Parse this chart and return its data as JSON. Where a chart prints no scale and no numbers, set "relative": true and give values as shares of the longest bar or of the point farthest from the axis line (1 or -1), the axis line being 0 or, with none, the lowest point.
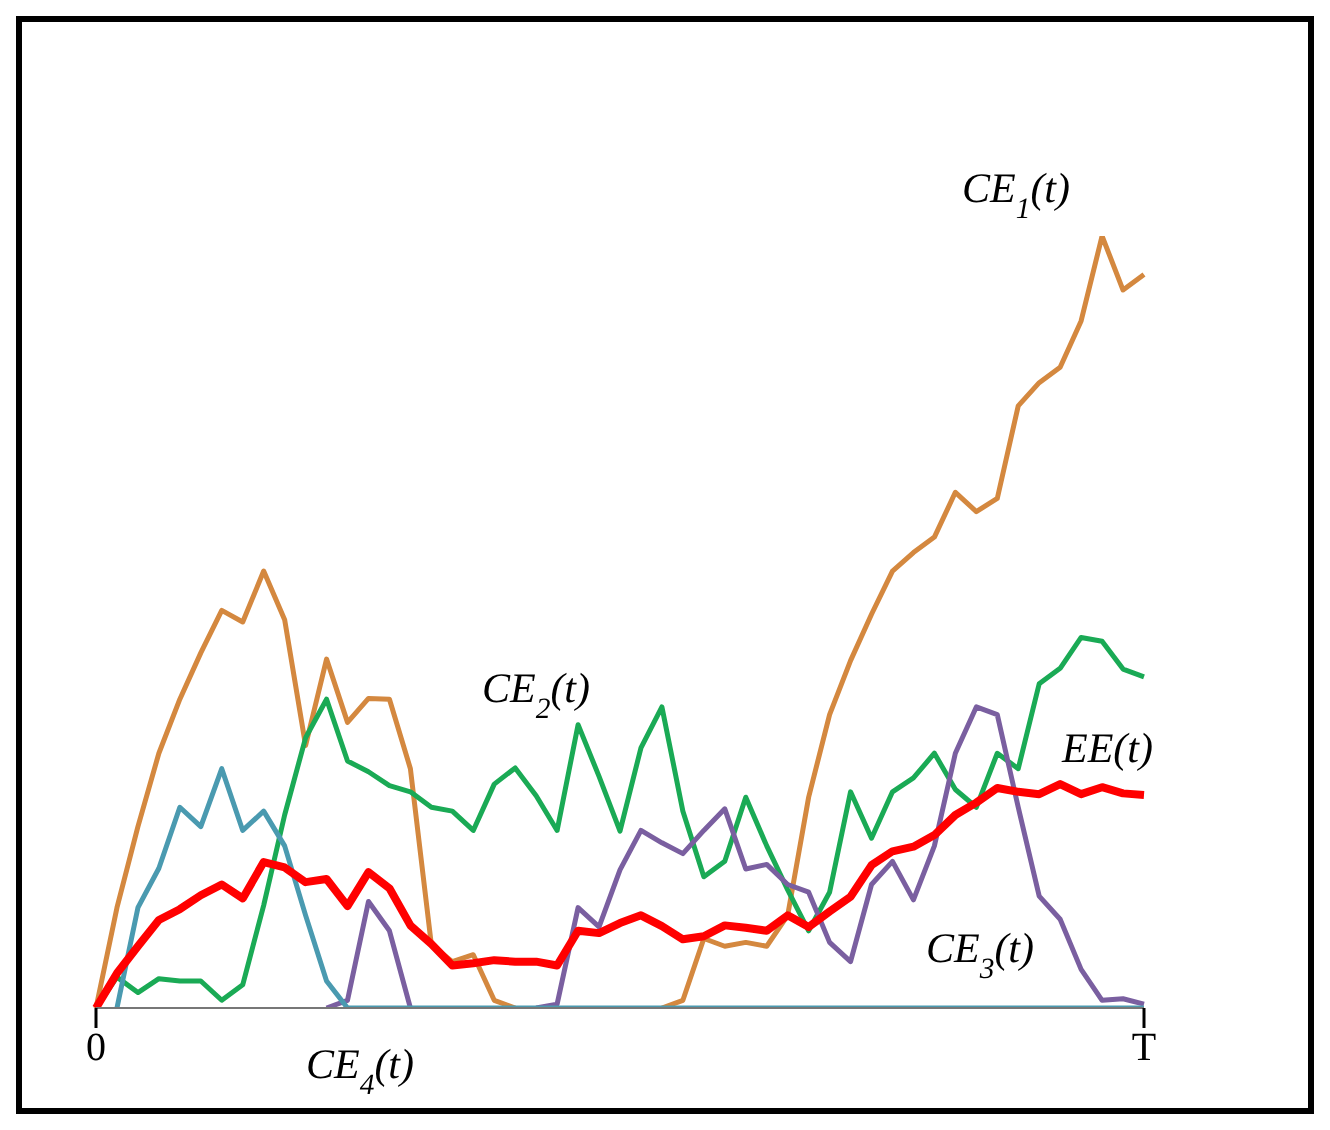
{
  "chart_data": {
    "type": "line",
    "relative": true,
    "tick_labels": "x",
    "categories": [
      "0",
      null,
      null,
      null,
      null,
      null,
      null,
      null,
      null,
      null,
      null,
      null,
      null,
      null,
      null,
      null,
      null,
      null,
      null,
      null,
      null,
      null,
      null,
      null,
      null,
      null,
      null,
      null,
      null,
      null,
      null,
      null,
      null,
      null,
      null,
      null,
      null,
      null,
      null,
      null,
      null,
      null,
      null,
      null,
      null,
      null,
      null,
      null,
      null,
      null,
      "T"
    ],
    "series": [
      {
        "name": "CE$_{1}$(t)",
        "color": "#d4883f",
        "values": [
          0,
          0.13,
          0.235,
          0.33,
          0.4,
          0.46,
          0.515,
          0.5,
          0.566,
          0.503,
          0.34,
          0.452,
          0.37,
          0.401,
          0.4,
          0.31,
          0.082,
          0.06,
          0.069,
          0.01,
          0,
          null,
          null,
          null,
          null,
          null,
          null,
          0,
          0.01,
          0.09,
          0.08,
          0.085,
          0.08,
          0.12,
          0.273,
          0.38,
          0.45,
          0.51,
          0.566,
          0.59,
          0.61,
          0.668,
          0.643,
          0.66,
          0.78,
          0.81,
          0.83,
          0.89,
          1,
          0.93,
          0.95
        ]
      },
      {
        "name": "CE$_{2}$(t)",
        "color": "#1aaa55",
        "values": [
          0,
          0.04,
          0.02,
          0.038,
          0.035,
          0.035,
          0.01,
          0.03,
          0.133,
          0.25,
          0.35,
          0.4,
          0.32,
          0.306,
          0.288,
          0.28,
          0.26,
          0.255,
          0.23,
          0.29,
          0.311,
          0.275,
          0.23,
          0.367,
          0.3,
          0.229,
          0.337,
          0.39,
          0.255,
          0.17,
          0.19,
          0.273,
          0.21,
          0.153,
          0.1,
          0.15,
          0.28,
          0.22,
          0.28,
          0.298,
          0.33,
          0.283,
          0.26,
          0.33,
          0.31,
          0.42,
          0.44,
          0.48,
          0.475,
          0.439,
          0.429
        ]
      },
      {
        "name": "CE$_{3}$(t)",
        "color": "#7a5fa0",
        "values": [
          null,
          null,
          null,
          null,
          null,
          null,
          null,
          null,
          null,
          null,
          null,
          0,
          0.01,
          0.138,
          0.1,
          0,
          null,
          null,
          null,
          null,
          null,
          0,
          0.005,
          0.13,
          0.105,
          0.179,
          0.23,
          0.214,
          0.2,
          0.23,
          0.258,
          0.18,
          0.186,
          0.16,
          0.15,
          0.085,
          0.06,
          0.16,
          0.19,
          0.14,
          0.21,
          0.33,
          0.39,
          0.38,
          0.26,
          0.145,
          0.115,
          0.05,
          0.01,
          0.012,
          0.005
        ]
      },
      {
        "name": "CE$_{4}$(t)",
        "color": "#4a9ab0",
        "values": [
          null,
          0,
          0.13,
          0.181,
          0.26,
          0.235,
          0.31,
          0.23,
          0.255,
          0.21,
          0.12,
          0.035,
          0,
          0,
          0,
          0,
          0,
          0,
          0,
          0,
          0,
          0,
          0,
          0,
          0,
          0,
          0,
          0,
          0,
          0,
          0,
          0,
          0,
          0,
          0,
          0,
          0,
          0,
          0,
          0,
          0,
          0,
          0,
          0,
          0,
          0,
          0,
          0,
          0,
          0,
          0
        ]
      },
      {
        "name": "EE(t)",
        "color": "#ff0000",
        "values": [
          0,
          0.045,
          0.08,
          0.114,
          0.128,
          0.146,
          0.16,
          0.142,
          0.189,
          0.182,
          0.163,
          0.167,
          0.132,
          0.176,
          0.155,
          0.107,
          0.083,
          0.055,
          0.058,
          0.062,
          0.06,
          0.06,
          0.055,
          0.1,
          0.097,
          0.11,
          0.12,
          0.106,
          0.089,
          0.093,
          0.107,
          0.104,
          0.1,
          0.12,
          0.105,
          0.125,
          0.144,
          0.185,
          0.203,
          0.209,
          0.224,
          0.25,
          0.266,
          0.285,
          0.28,
          0.277,
          0.29,
          0.277,
          0.286,
          0.278,
          0.276
        ]
      }
    ]
  }
}
